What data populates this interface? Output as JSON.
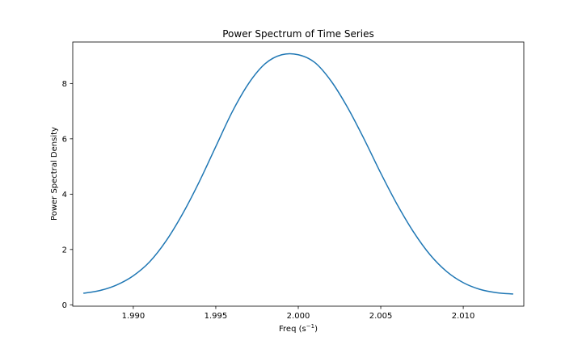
{
  "chart_data": {
    "type": "line",
    "title": "Power Spectrum of Time Series",
    "xlabel_main": "Freq (s",
    "xlabel_sup": "−1",
    "xlabel_close": ")",
    "ylabel": "Power Spectral Density",
    "xlim": [
      1.98633,
      2.01367
    ],
    "ylim": [
      -0.05,
      9.5
    ],
    "xticks": [
      1.99,
      1.995,
      2.0,
      2.005,
      2.01
    ],
    "xtick_labels": [
      "1.990",
      "1.995",
      "2.000",
      "2.005",
      "2.010"
    ],
    "yticks": [
      0,
      2,
      4,
      6,
      8
    ],
    "ytick_labels": [
      "0",
      "2",
      "4",
      "6",
      "8"
    ],
    "series": [
      {
        "color": "#1f77b4",
        "x": [
          1.987,
          1.988,
          1.989,
          1.99,
          1.991,
          1.992,
          1.993,
          1.994,
          1.995,
          1.996,
          1.997,
          1.998,
          1.999,
          2.0,
          2.001,
          2.002,
          2.003,
          2.004,
          2.005,
          2.006,
          2.007,
          2.008,
          2.009,
          2.01,
          2.011,
          2.012,
          2.013
        ],
        "y": [
          0.42,
          0.52,
          0.72,
          1.05,
          1.56,
          2.32,
          3.3,
          4.45,
          5.72,
          6.98,
          8.01,
          8.72,
          9.04,
          9.04,
          8.76,
          8.08,
          7.12,
          5.98,
          4.76,
          3.62,
          2.62,
          1.8,
          1.2,
          0.8,
          0.56,
          0.44,
          0.39
        ]
      }
    ],
    "grid": false,
    "legend": "none"
  }
}
